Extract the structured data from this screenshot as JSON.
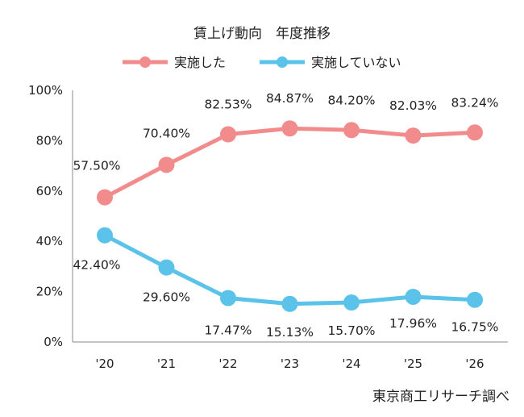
{
  "chart_data": {
    "type": "line",
    "title": "賃上げ動向　年度推移",
    "categories": [
      "'20",
      "'21",
      "'22",
      "'23",
      "'24",
      "'25",
      "'26"
    ],
    "series": [
      {
        "name": "実施した",
        "color": "#F28B8B",
        "values": [
          57.5,
          70.4,
          82.53,
          84.87,
          84.2,
          82.03,
          83.24
        ],
        "labels": [
          "57.50%",
          "70.40%",
          "82.53%",
          "84.87%",
          "84.20%",
          "82.03%",
          "83.24%"
        ]
      },
      {
        "name": "実施していない",
        "color": "#5BC3E9",
        "values": [
          42.4,
          29.6,
          17.47,
          15.13,
          15.7,
          17.96,
          16.75
        ],
        "labels": [
          "42.40%",
          "29.60%",
          "17.47%",
          "15.13%",
          "15.70%",
          "17.96%",
          "16.75%"
        ]
      }
    ],
    "y_ticks": [
      "0%",
      "20%",
      "40%",
      "60%",
      "80%",
      "100%"
    ],
    "ylim": [
      0,
      100
    ],
    "grid": false,
    "legend": "top-center"
  },
  "source_note": "東京商工リサーチ調べ"
}
